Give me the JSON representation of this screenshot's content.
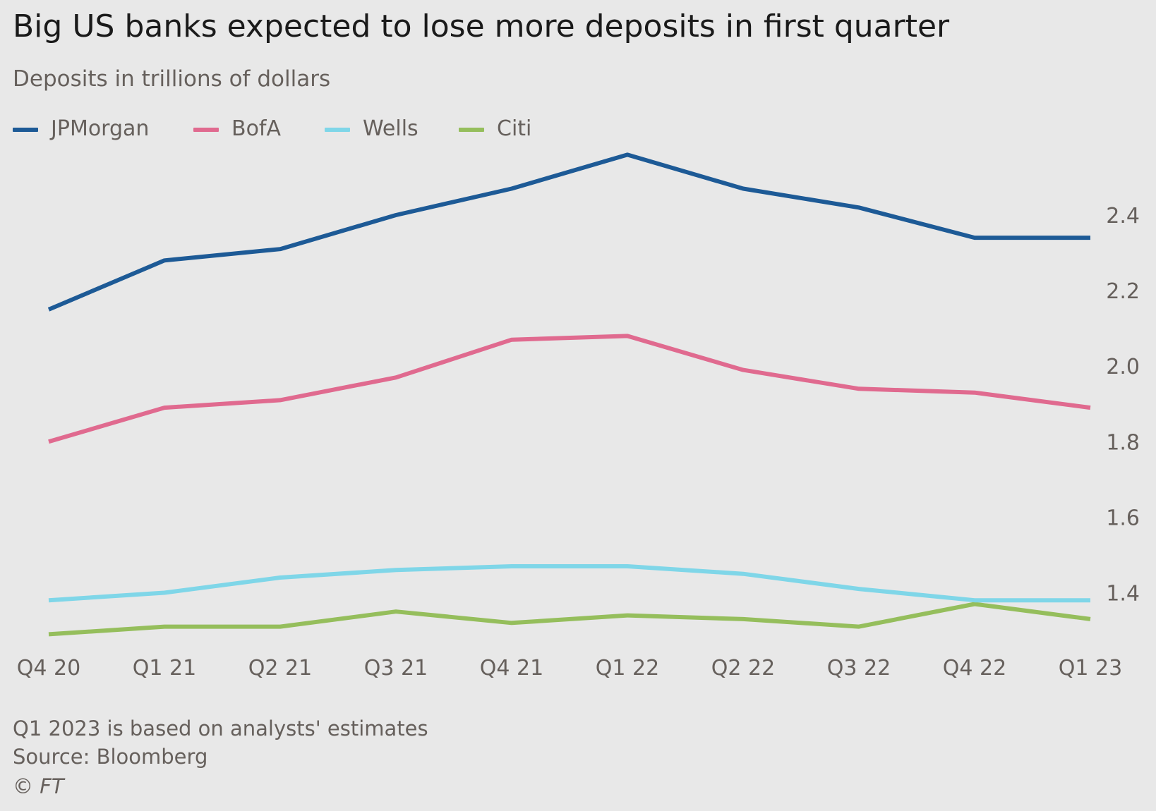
{
  "title": "Big US banks expected to lose more deposits in first quarter",
  "subtitle": "Deposits in trillions of dollars",
  "footer": {
    "note": "Q1 2023 is based on analysts' estimates",
    "source": "Source: Bloomberg",
    "copyright": "© FT"
  },
  "chart_data": {
    "type": "line",
    "title": "Big US banks expected to lose more deposits in first quarter",
    "subtitle": "Deposits in trillions of dollars",
    "x": [
      "Q4 20",
      "Q1 21",
      "Q2 21",
      "Q3 21",
      "Q4 21",
      "Q1 22",
      "Q2 22",
      "Q3 22",
      "Q4 22",
      "Q1 23"
    ],
    "yticks": [
      "1.4",
      "1.6",
      "1.8",
      "2.0",
      "2.2",
      "2.4"
    ],
    "ylim": [
      1.3,
      2.57
    ],
    "y_axis_side": "right",
    "grid": false,
    "legend_position": "top-left",
    "series": [
      {
        "name": "JPMorgan",
        "color": "#1d5a96",
        "values": [
          2.15,
          2.28,
          2.31,
          2.4,
          2.47,
          2.56,
          2.47,
          2.42,
          2.34,
          2.34
        ]
      },
      {
        "name": "BofA",
        "color": "#e06a8f",
        "values": [
          1.8,
          1.89,
          1.91,
          1.97,
          2.07,
          2.08,
          1.99,
          1.94,
          1.93,
          1.89
        ]
      },
      {
        "name": "Wells",
        "color": "#7fd6e8",
        "values": [
          1.38,
          1.4,
          1.44,
          1.46,
          1.47,
          1.47,
          1.45,
          1.41,
          1.38,
          1.38
        ]
      },
      {
        "name": "Citi",
        "color": "#95be5c",
        "values": [
          1.29,
          1.31,
          1.31,
          1.35,
          1.32,
          1.34,
          1.33,
          1.31,
          1.37,
          1.33
        ]
      }
    ]
  }
}
